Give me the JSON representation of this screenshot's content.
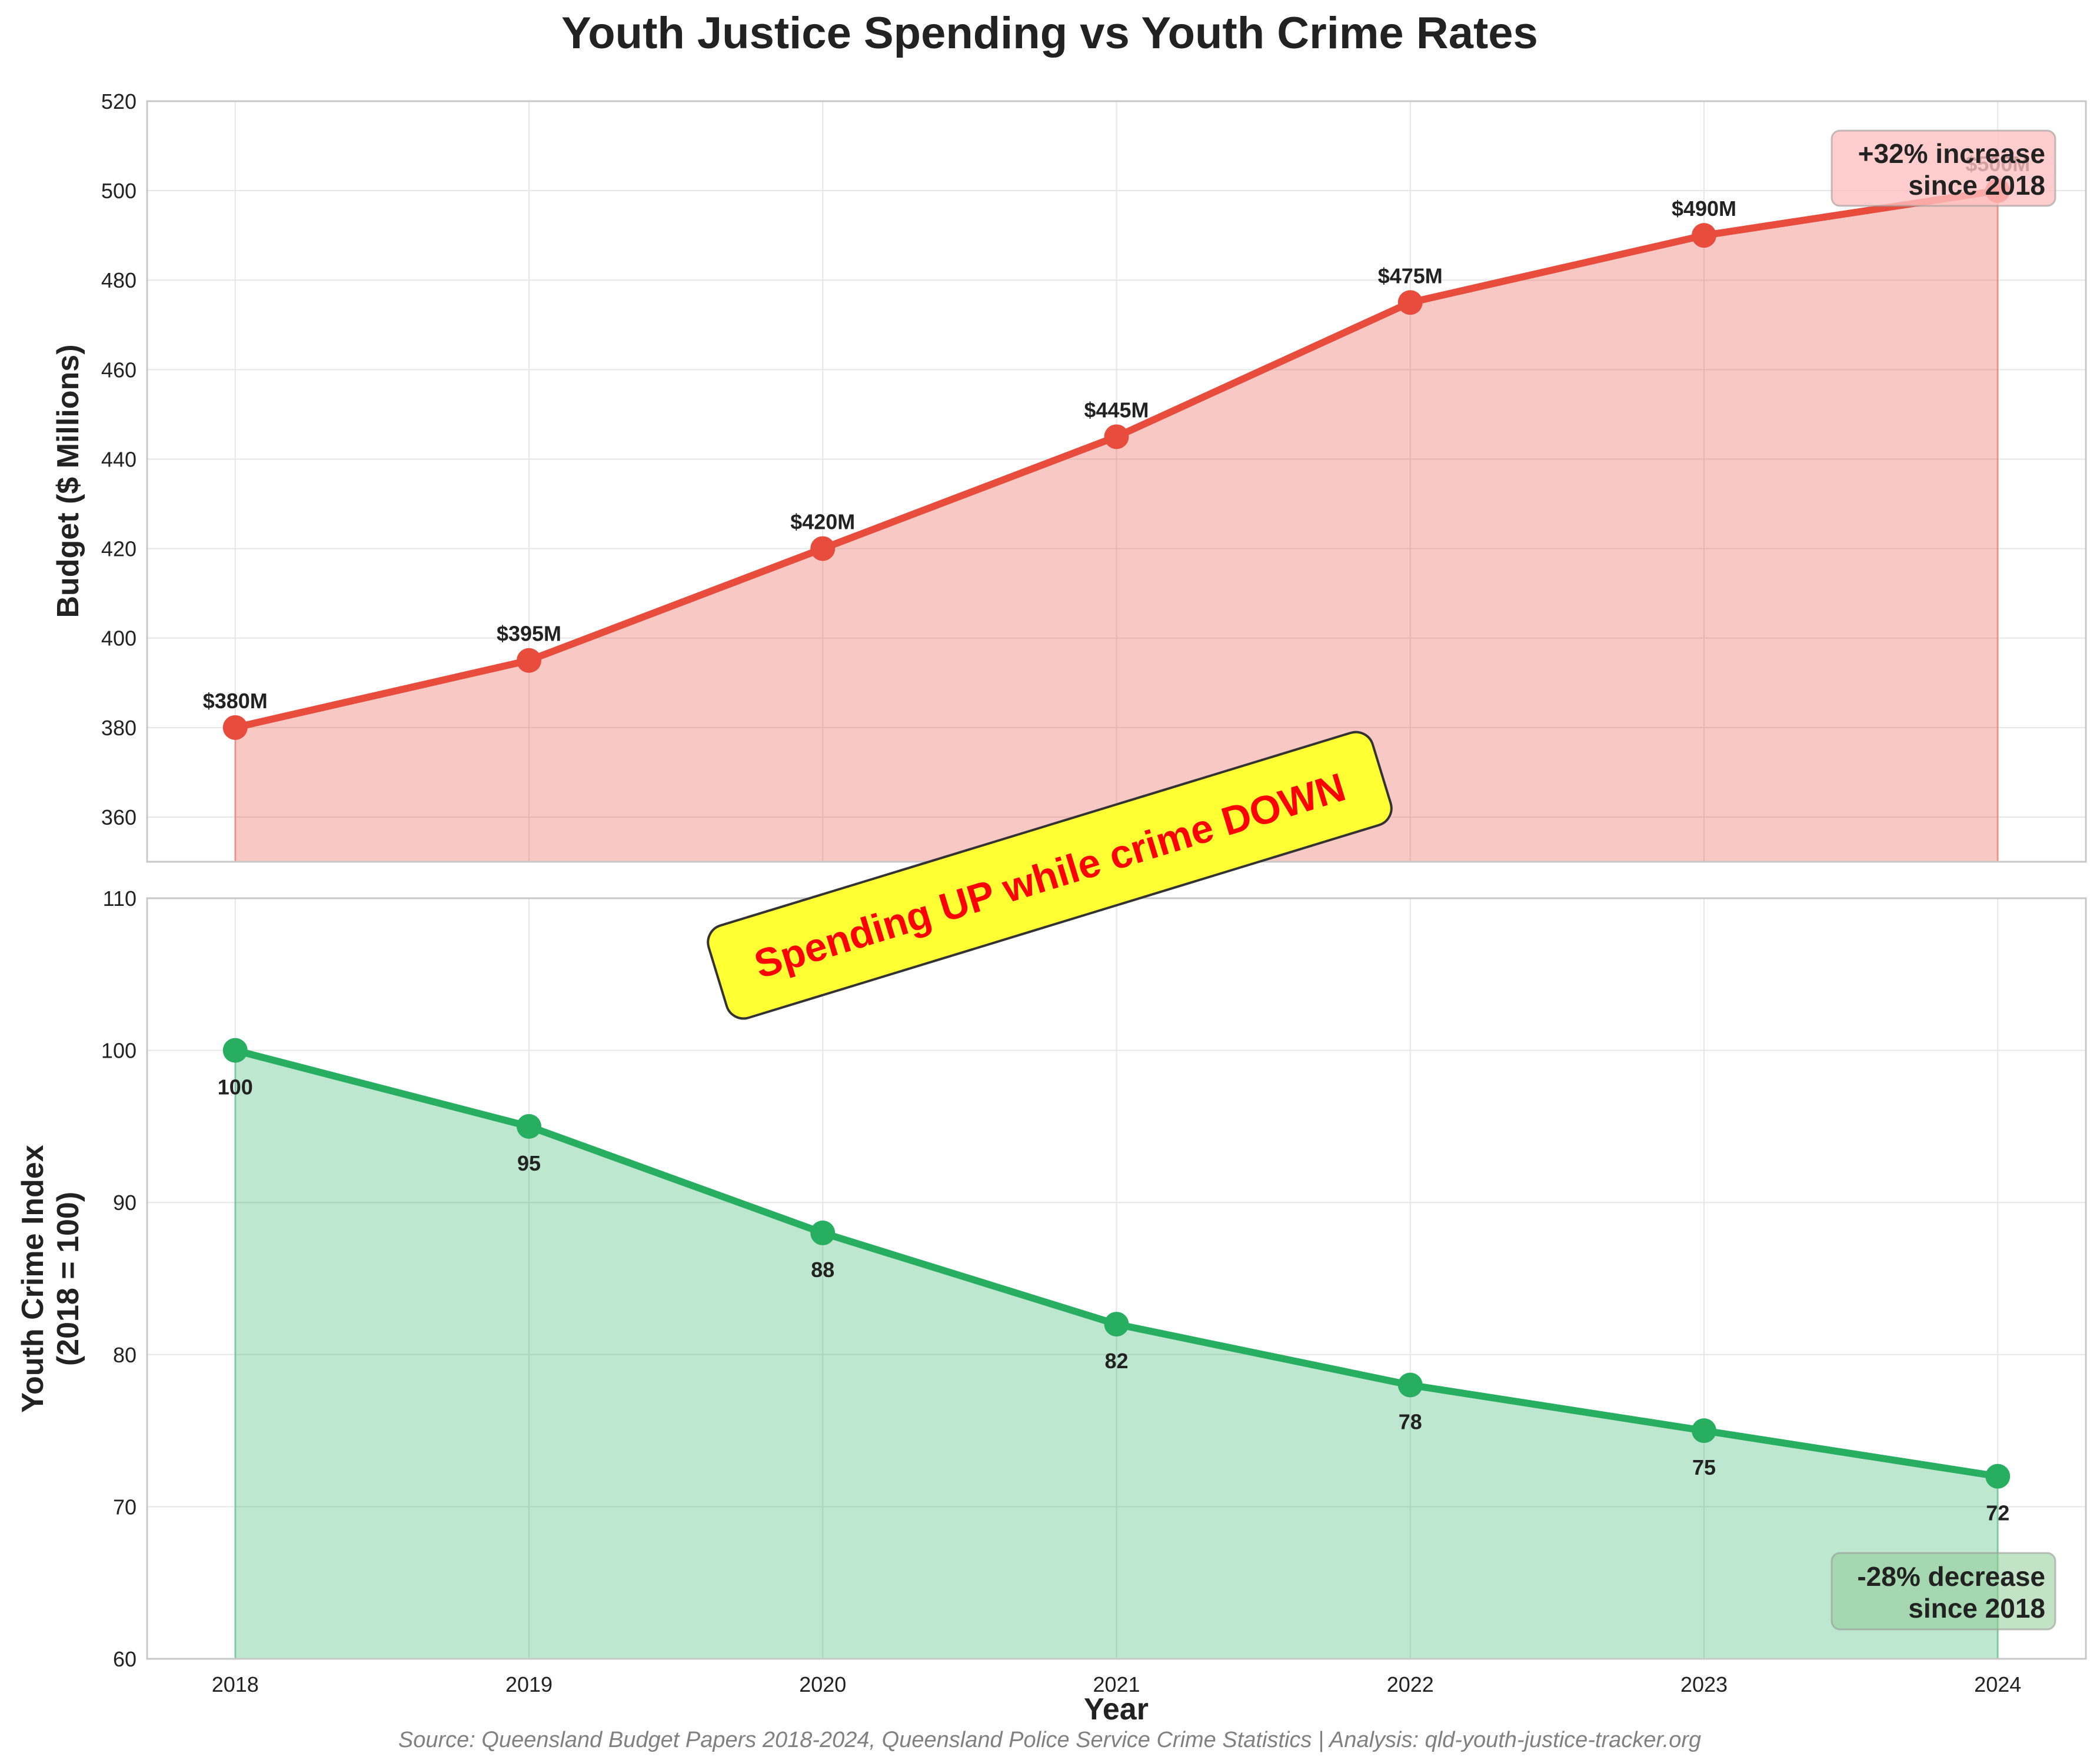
{
  "title": "Youth Justice Spending vs Youth Crime Rates",
  "source": "Source: Queensland Budget Papers 2018-2024, Queensland Police Service Crime Statistics | Analysis: qld-youth-justice-tracker.org",
  "callout": "Spending UP while crime DOWN",
  "colors": {
    "budget": "#e74c3c",
    "crime": "#27ae60",
    "callout_bg": "#ffff33",
    "callout_text": "#ff0000"
  },
  "chart_data": [
    {
      "type": "area",
      "ylabel": "Budget ($ Millions)",
      "x": [
        2018,
        2019,
        2020,
        2021,
        2022,
        2023,
        2024
      ],
      "values": [
        380,
        395,
        420,
        445,
        475,
        490,
        500
      ],
      "data_labels": [
        "$380M",
        "$395M",
        "$420M",
        "$445M",
        "$475M",
        "$490M",
        "$500M"
      ],
      "ylim": [
        350,
        520
      ],
      "yticks": [
        360,
        380,
        400,
        420,
        440,
        460,
        480,
        500,
        520
      ],
      "grid": true,
      "annotation": [
        "+32% increase",
        "since 2018"
      ]
    },
    {
      "type": "area",
      "xlabel": "Year",
      "ylabel": [
        "Youth Crime Index",
        "(2018 = 100)"
      ],
      "x": [
        2018,
        2019,
        2020,
        2021,
        2022,
        2023,
        2024
      ],
      "values": [
        100,
        95,
        88,
        82,
        78,
        75,
        72
      ],
      "data_labels": [
        "100",
        "95",
        "88",
        "82",
        "78",
        "75",
        "72"
      ],
      "ylim": [
        60,
        110
      ],
      "yticks": [
        60,
        70,
        80,
        90,
        100,
        110
      ],
      "grid": true,
      "annotation": [
        "-28% decrease",
        "since 2018"
      ]
    }
  ]
}
